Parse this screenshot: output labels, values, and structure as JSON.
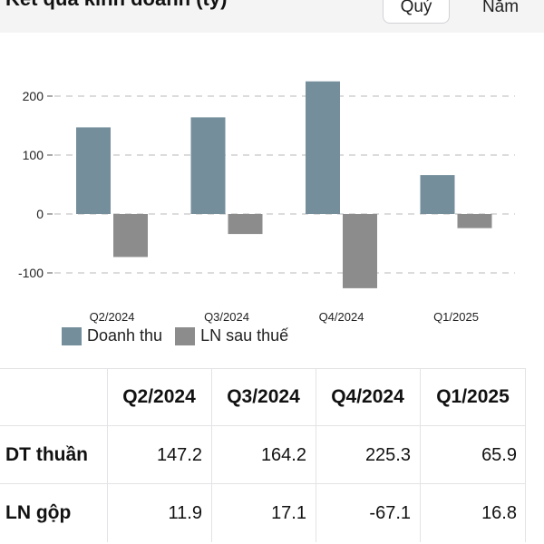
{
  "header": {
    "title": "Kết quả kinh doanh (tỷ)",
    "periods": [
      {
        "label": "Quý",
        "active": true
      },
      {
        "label": "Năm",
        "active": false
      }
    ]
  },
  "chart_data": {
    "type": "bar",
    "title": "",
    "xlabel": "",
    "ylabel": "",
    "categories": [
      "Q2/2024",
      "Q3/2024",
      "Q4/2024",
      "Q1/2025"
    ],
    "series": [
      {
        "name": "Doanh thu",
        "values": [
          147,
          164,
          225,
          66
        ],
        "color": "#748e9c"
      },
      {
        "name": "LN sau thuế",
        "values": [
          -73,
          -34,
          -126,
          -24
        ],
        "color": "#8c8c8c"
      }
    ],
    "ylim": [
      -145,
      230
    ],
    "yticks": [
      200,
      100,
      0,
      -100
    ],
    "grid": true,
    "legend": "bottom-left"
  },
  "table": {
    "columns": [
      "",
      "Q2/2024",
      "Q3/2024",
      "Q4/2024",
      "Q1/2025"
    ],
    "rows": [
      {
        "label": "DT thuần",
        "values": [
          "147.2",
          "164.2",
          "225.3",
          "65.9"
        ]
      },
      {
        "label": "LN gộp",
        "values": [
          "11.9",
          "17.1",
          "-67.1",
          "16.8"
        ]
      }
    ]
  }
}
